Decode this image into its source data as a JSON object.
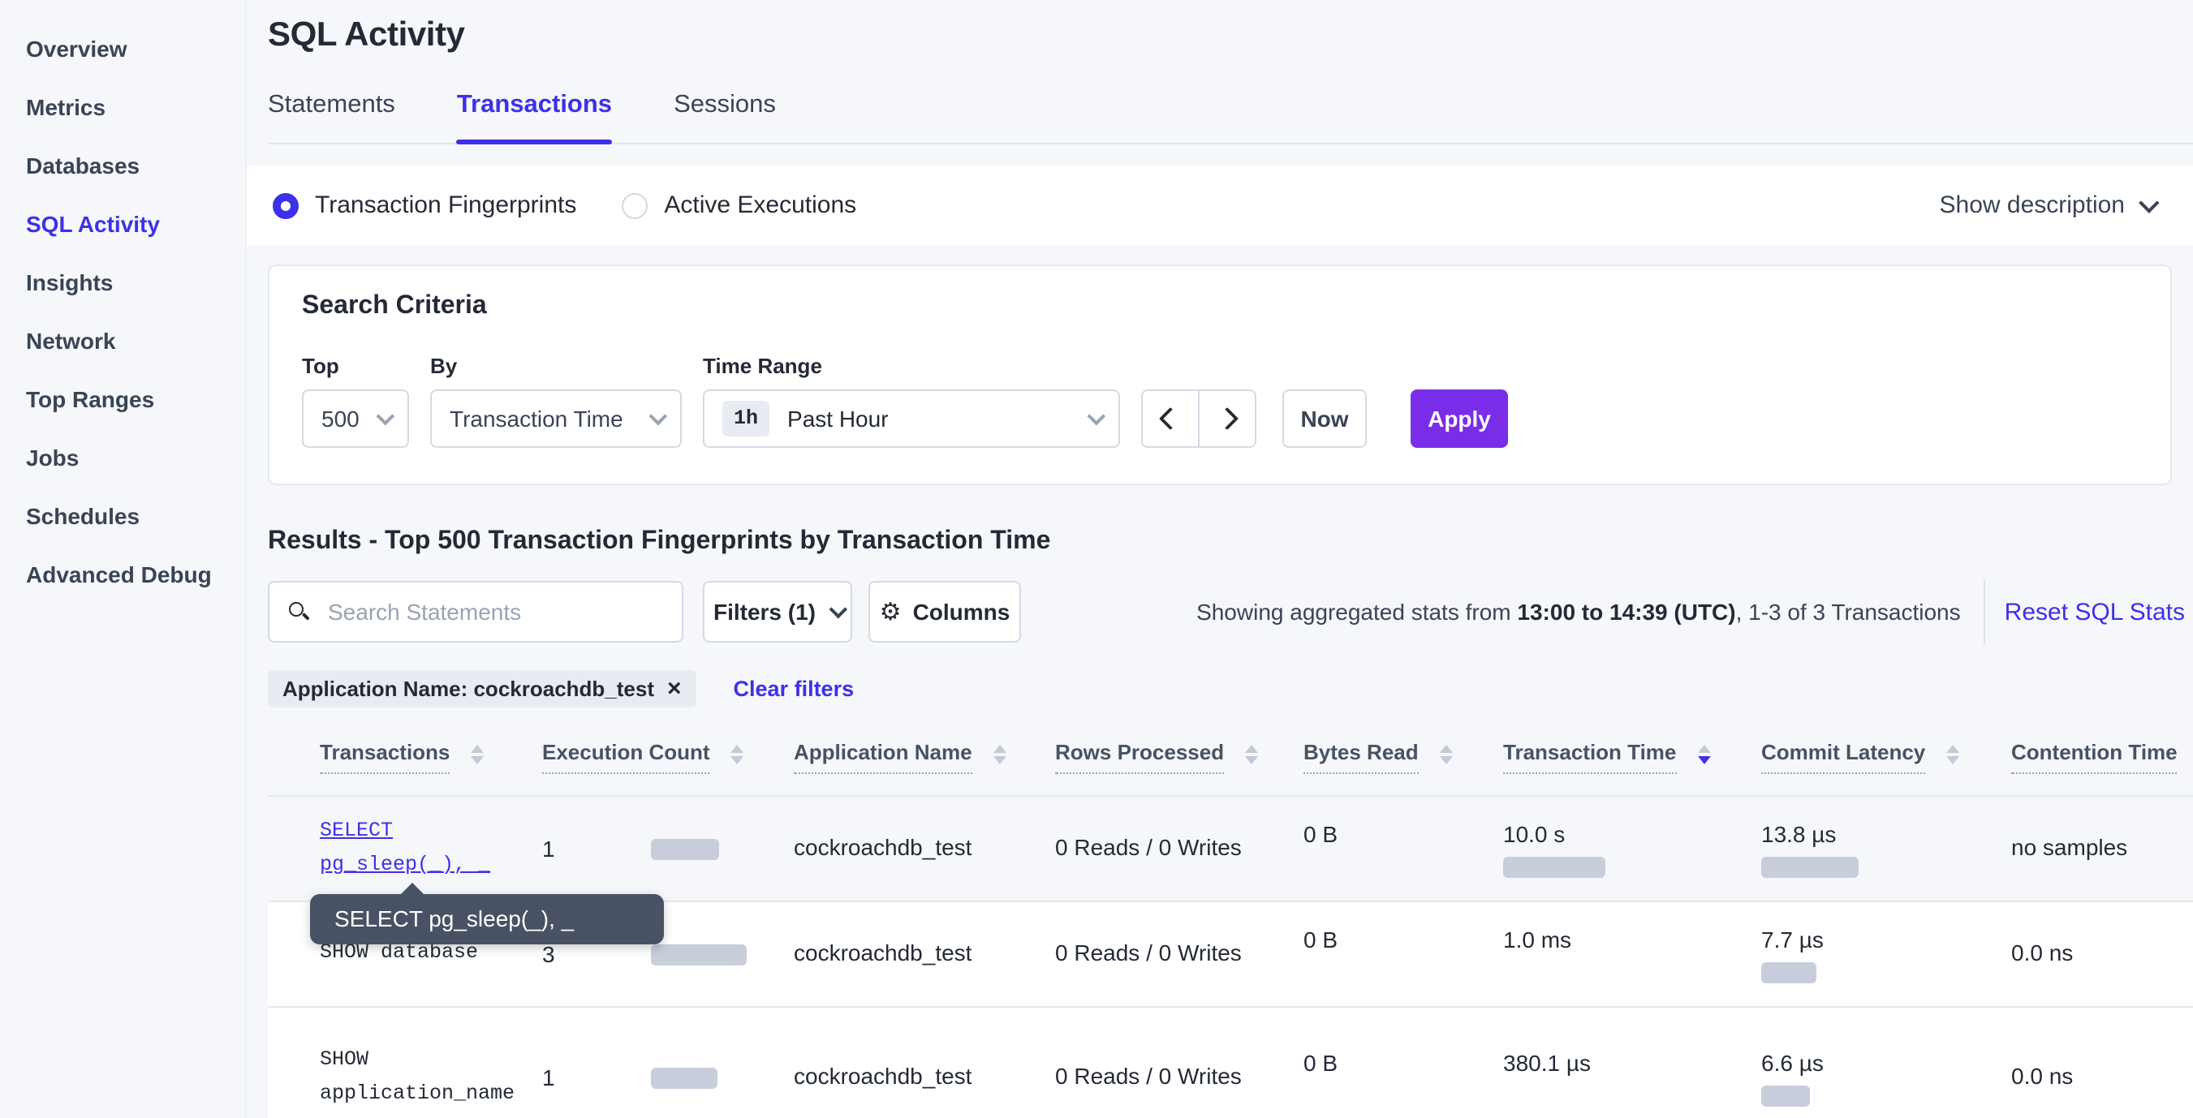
{
  "colors": {
    "accent": "#3D30E9",
    "apply_purple": "#7A2DE8",
    "bar": "#C7CDDB",
    "tooltip_bg": "#485264"
  },
  "sidebar": {
    "items": [
      {
        "label": "Overview"
      },
      {
        "label": "Metrics"
      },
      {
        "label": "Databases"
      },
      {
        "label": "SQL Activity",
        "active": true
      },
      {
        "label": "Insights"
      },
      {
        "label": "Network"
      },
      {
        "label": "Top Ranges"
      },
      {
        "label": "Jobs"
      },
      {
        "label": "Schedules"
      },
      {
        "label": "Advanced Debug"
      }
    ]
  },
  "page": {
    "title": "SQL Activity"
  },
  "tabs": {
    "statements": "Statements",
    "transactions": "Transactions",
    "sessions": "Sessions",
    "active": "Transactions"
  },
  "view_toggle": {
    "fingerprints_label": "Transaction Fingerprints",
    "active_exec_label": "Active Executions",
    "selected": "Transaction Fingerprints",
    "show_description_label": "Show description"
  },
  "search_criteria": {
    "heading": "Search Criteria",
    "top": {
      "label": "Top",
      "value": "500"
    },
    "by": {
      "label": "By",
      "value": "Transaction Time"
    },
    "time_range": {
      "label": "Time Range",
      "badge": "1h",
      "value": "Past Hour"
    },
    "now_label": "Now",
    "apply_label": "Apply"
  },
  "results": {
    "heading": "Results - Top 500 Transaction Fingerprints by Transaction Time",
    "search_placeholder": "Search Statements",
    "filters_label": "Filters (1)",
    "columns_label": "Columns",
    "stats_prefix": "Showing aggregated stats from ",
    "stats_bold": "13:00 to 14:39 (UTC)",
    "stats_suffix": ", 1-3 of 3 Transactions",
    "reset_link": "Reset SQL Stats",
    "filter_chip": "Application Name: cockroachdb_test",
    "chip_close": "×",
    "clear_filters": "Clear filters"
  },
  "table": {
    "columns": [
      {
        "label": "Transactions",
        "sort": "none"
      },
      {
        "label": "Execution Count",
        "sort": "none"
      },
      {
        "label": "Application Name",
        "sort": "none"
      },
      {
        "label": "Rows Processed",
        "sort": "none"
      },
      {
        "label": "Bytes Read",
        "sort": "none"
      },
      {
        "label": "Transaction Time",
        "sort": "desc"
      },
      {
        "label": "Commit Latency",
        "sort": "none"
      },
      {
        "label": "Contention Time",
        "sort": "none"
      }
    ],
    "rows": [
      {
        "transaction": "SELECT pg_sleep(_), _",
        "execution_count": "1",
        "execution_bar": 42,
        "application_name": "cockroachdb_test",
        "rows_processed": "0 Reads / 0 Writes",
        "bytes_read": "0 B",
        "transaction_time": "10.0 s",
        "transaction_time_bar": 63,
        "commit_latency": "13.8 µs",
        "commit_latency_bar": 60,
        "contention_time": "no samples"
      },
      {
        "transaction": "SHOW database",
        "execution_count": "3",
        "execution_bar": 59,
        "application_name": "cockroachdb_test",
        "rows_processed": "0 Reads / 0 Writes",
        "bytes_read": "0 B",
        "transaction_time": "1.0 ms",
        "transaction_time_bar": 0,
        "commit_latency": "7.7 µs",
        "commit_latency_bar": 34,
        "contention_time": "0.0 ns"
      },
      {
        "transaction": "SHOW application_name",
        "execution_count": "1",
        "execution_bar": 41,
        "application_name": "cockroachdb_test",
        "rows_processed": "0 Reads / 0 Writes",
        "bytes_read": "0 B",
        "transaction_time": "380.1 µs",
        "transaction_time_bar": 0,
        "commit_latency": "6.6 µs",
        "commit_latency_bar": 30,
        "contention_time": "0.0 ns"
      }
    ]
  },
  "tooltip": {
    "text": "SELECT pg_sleep(_), _"
  }
}
